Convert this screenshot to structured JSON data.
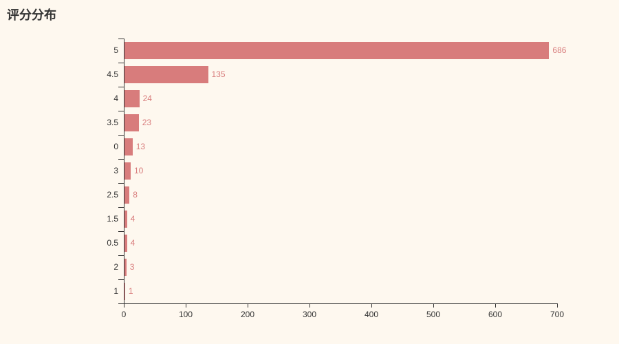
{
  "title": "评分分布",
  "colors": {
    "background": "#fef8ef",
    "bar": "#d87c7c",
    "axis": "#333333",
    "axis_text": "#333333",
    "value_label": "#d87c7c",
    "title_text": "#333333"
  },
  "chart_data": {
    "type": "bar",
    "orientation": "horizontal",
    "title": "评分分布",
    "categories": [
      "5",
      "4.5",
      "4",
      "3.5",
      "0",
      "3",
      "2.5",
      "1.5",
      "0.5",
      "2",
      "1"
    ],
    "values": [
      686,
      135,
      24,
      23,
      13,
      10,
      8,
      4,
      4,
      3,
      1
    ],
    "xlabel": "",
    "ylabel": "",
    "xlim": [
      0,
      700
    ],
    "x_ticks": [
      0,
      100,
      200,
      300,
      400,
      500,
      600,
      700
    ],
    "grid": false,
    "legend": false,
    "value_labels": true
  }
}
